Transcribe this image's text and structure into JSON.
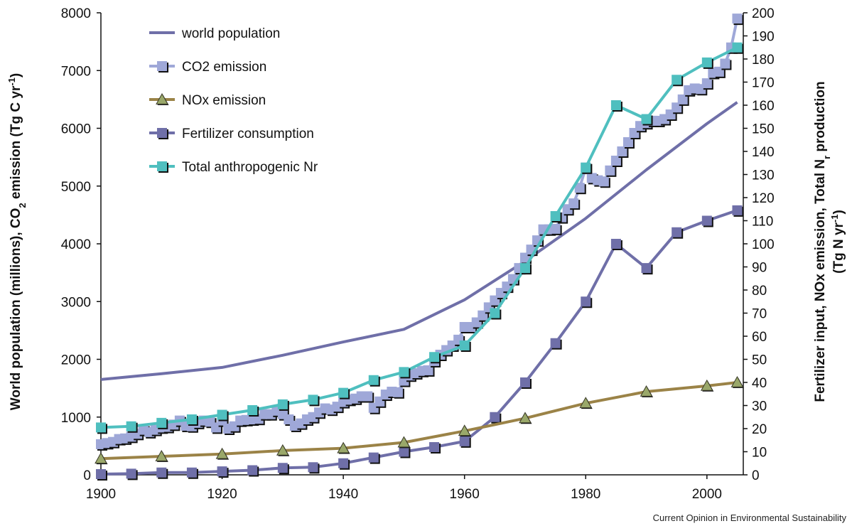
{
  "chart_data": {
    "type": "line",
    "credit": "Current Opinion in Environmental Sustainability",
    "x_axis": {
      "range": [
        1900,
        2006
      ],
      "ticks": [
        1900,
        1920,
        1940,
        1960,
        1980,
        2000
      ]
    },
    "y_left": {
      "label_parts": {
        "pre": "World population (millions), CO",
        "sub": "2",
        "mid": " emission (Tg C yr",
        "sup": "-1",
        "post": ")"
      },
      "range": [
        0,
        8000
      ],
      "ticks": [
        0,
        1000,
        2000,
        3000,
        4000,
        5000,
        6000,
        7000,
        8000
      ]
    },
    "y_right": {
      "label_line1_parts": {
        "pre": "Fertilizer input, NOx emission, Total N",
        "sub": "r",
        "post": " production"
      },
      "label_line2_parts": {
        "pre": "(Tg N yr",
        "sup": "-1",
        "post": ")"
      },
      "range": [
        0,
        200
      ],
      "ticks": [
        0,
        10,
        20,
        30,
        40,
        50,
        60,
        70,
        80,
        90,
        100,
        110,
        120,
        130,
        140,
        150,
        160,
        170,
        180,
        190,
        200
      ]
    },
    "legend_position": "top-left",
    "grid": false,
    "series": [
      {
        "name": "world population",
        "axis": "left",
        "marker": "none",
        "color": "#6f6fa8",
        "x": [
          1900,
          1910,
          1920,
          1930,
          1940,
          1950,
          1960,
          1970,
          1980,
          1990,
          2000,
          2005
        ],
        "y": [
          1650,
          1750,
          1860,
          2070,
          2300,
          2520,
          3030,
          3700,
          4440,
          5280,
          6080,
          6450
        ]
      },
      {
        "name": "CO2 emission",
        "axis": "left",
        "marker": "square",
        "color": "#9fa8d8",
        "x": [
          1900,
          1901,
          1902,
          1903,
          1904,
          1905,
          1906,
          1907,
          1908,
          1909,
          1910,
          1911,
          1912,
          1913,
          1914,
          1915,
          1916,
          1917,
          1918,
          1919,
          1920,
          1921,
          1922,
          1923,
          1924,
          1925,
          1926,
          1927,
          1928,
          1929,
          1930,
          1931,
          1932,
          1933,
          1934,
          1935,
          1936,
          1937,
          1938,
          1939,
          1940,
          1941,
          1942,
          1943,
          1944,
          1945,
          1946,
          1947,
          1948,
          1949,
          1950,
          1951,
          1952,
          1953,
          1954,
          1955,
          1956,
          1957,
          1958,
          1959,
          1960,
          1961,
          1962,
          1963,
          1964,
          1965,
          1966,
          1967,
          1968,
          1969,
          1970,
          1971,
          1972,
          1973,
          1974,
          1975,
          1976,
          1977,
          1978,
          1979,
          1980,
          1981,
          1982,
          1983,
          1984,
          1985,
          1986,
          1987,
          1988,
          1989,
          1990,
          1991,
          1992,
          1993,
          1994,
          1995,
          1996,
          1997,
          1998,
          1999,
          2000,
          2001,
          2002,
          2003,
          2004,
          2005
        ],
        "y": [
          530,
          550,
          570,
          620,
          630,
          660,
          710,
          780,
          740,
          780,
          820,
          830,
          870,
          940,
          850,
          840,
          900,
          940,
          920,
          820,
          940,
          800,
          840,
          940,
          950,
          960,
          970,
          1050,
          1050,
          1110,
          1050,
          960,
          850,
          890,
          960,
          1000,
          1080,
          1150,
          1130,
          1180,
          1260,
          1300,
          1320,
          1360,
          1360,
          1160,
          1270,
          1390,
          1440,
          1430,
          1630,
          1720,
          1760,
          1800,
          1810,
          1970,
          2080,
          2160,
          2240,
          2340,
          2560,
          2560,
          2640,
          2760,
          2900,
          3020,
          3150,
          3260,
          3390,
          3580,
          3760,
          3900,
          4060,
          4250,
          4250,
          4260,
          4460,
          4600,
          4700,
          4970,
          5320,
          5140,
          5100,
          5080,
          5270,
          5440,
          5600,
          5760,
          5920,
          6040,
          6090,
          6130,
          6130,
          6160,
          6240,
          6360,
          6500,
          6660,
          6690,
          6680,
          6780,
          6960,
          6980,
          7120,
          7400,
          7900
        ]
      },
      {
        "name": "NOx emission",
        "axis": "right",
        "marker": "triangle",
        "color": "#9b8347",
        "x": [
          1900,
          1910,
          1920,
          1930,
          1940,
          1950,
          1960,
          1970,
          1980,
          1990,
          2000,
          2005
        ],
        "y": [
          7,
          8,
          9,
          10.5,
          11.5,
          14,
          19,
          24.5,
          31,
          36,
          38.5,
          40
        ]
      },
      {
        "name": "Fertilizer consumption",
        "axis": "right",
        "marker": "square",
        "color": "#6f6fa8",
        "x": [
          1900,
          1905,
          1910,
          1915,
          1920,
          1925,
          1930,
          1935,
          1940,
          1945,
          1950,
          1955,
          1960,
          1965,
          1970,
          1975,
          1980,
          1985,
          1990,
          1995,
          2000,
          2005
        ],
        "y": [
          0.3,
          0.5,
          1,
          1,
          1.5,
          2,
          3,
          3.3,
          5,
          7.5,
          10,
          12,
          14.5,
          25,
          40,
          57,
          75,
          100,
          89.5,
          105,
          110,
          114.5
        ]
      },
      {
        "name": "Total anthropogenic Nr",
        "axis": "right",
        "marker": "square",
        "color": "#4fbfbf",
        "x": [
          1900,
          1905,
          1910,
          1915,
          1920,
          1925,
          1930,
          1935,
          1940,
          1945,
          1950,
          1955,
          1960,
          1965,
          1970,
          1975,
          1980,
          1985,
          1990,
          1995,
          2000,
          2005
        ],
        "y": [
          20.5,
          21,
          22.5,
          24,
          26,
          28,
          30.5,
          32.5,
          35.5,
          41,
          44.5,
          51,
          56,
          70,
          89.5,
          112,
          133,
          160,
          154,
          171,
          178.5,
          185
        ]
      }
    ]
  }
}
